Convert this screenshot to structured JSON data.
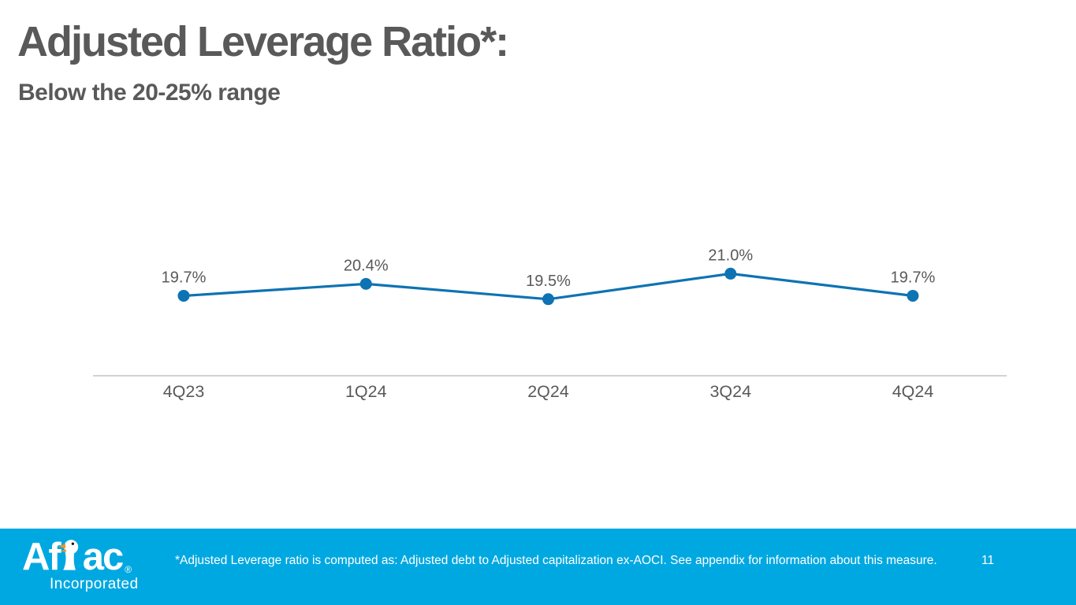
{
  "slide": {
    "title": "Adjusted Leverage Ratio*:",
    "subtitle": "Below the 20-25% range"
  },
  "chart_data": {
    "type": "line",
    "categories": [
      "4Q23",
      "1Q24",
      "2Q24",
      "3Q24",
      "4Q24"
    ],
    "values": [
      19.7,
      20.4,
      19.5,
      21.0,
      19.7
    ],
    "data_labels": [
      "19.7%",
      "20.4%",
      "19.5%",
      "21.0%",
      "19.7%"
    ],
    "title": "",
    "xlabel": "",
    "ylabel": "",
    "ylim": [
      15,
      22.5
    ],
    "grid": false,
    "legend": "none",
    "line_color": "#0E73B2",
    "marker_color": "#0E73B2",
    "axis_color": "#A6A6A6",
    "label_color": "#595959"
  },
  "footer": {
    "background_color": "#00A8E1",
    "logo": {
      "text_before_duck": "Af",
      "text_after_duck": "ac",
      "registered": "®",
      "subtext": "Incorporated",
      "duck_icon": "aflac-duck-icon"
    },
    "footnote": "*Adjusted Leverage ratio is computed as: Adjusted debt to Adjusted capitalization ex-AOCI. See appendix for information about this measure.",
    "page_number": "11"
  }
}
